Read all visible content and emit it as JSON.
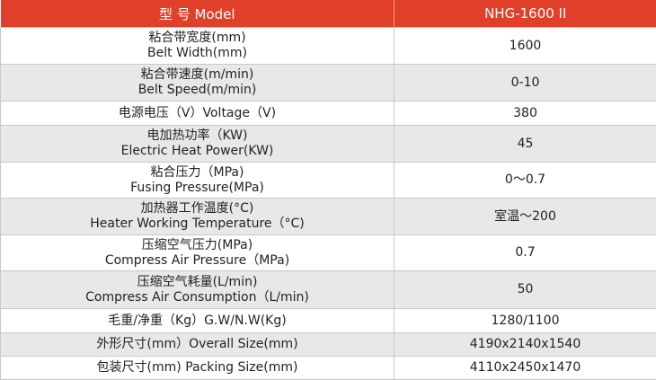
{
  "header": {
    "model_label": "型 号 Model",
    "model_value": "NHG-1600 II"
  },
  "rows": [
    {
      "label_cn": "粘合带宽度(mm)",
      "label_en": "Belt Width(mm)",
      "value": "1600"
    },
    {
      "label_cn": "粘合带速度(m/min)",
      "label_en": "Belt Speed(m/min)",
      "value": "0-10"
    },
    {
      "label_cn": "电源电压（V）Voltage（V)",
      "label_en": "",
      "value": "380"
    },
    {
      "label_cn": "电加热功率（KW)",
      "label_en": "Electric Heat Power(KW)",
      "value": "45"
    },
    {
      "label_cn": "粘合压力（MPa)",
      "label_en": "Fusing Pressure(MPa)",
      "value": "0～0.7"
    },
    {
      "label_cn": "加热器工作温度(°C)",
      "label_en": "Heater Working Temperature（°C)",
      "value": "室温～200"
    },
    {
      "label_cn": "压缩空气压力(MPa)",
      "label_en": "Compress Air Pressure（MPa)",
      "value": "0.7"
    },
    {
      "label_cn": "压缩空气耗量(L/min)",
      "label_en": "Compress Air Consumption（L/min)",
      "value": "50"
    },
    {
      "label_cn": "毛重/净重（Kg）G.W/N.W(Kg)",
      "label_en": "",
      "value": "1280/1100"
    },
    {
      "label_cn": "外形尺寸(mm）Overall Size(mm)",
      "label_en": "",
      "value": "4190x2140x1540"
    },
    {
      "label_cn": "包装尺寸(mm) Packing Size(mm)",
      "label_en": "",
      "value": "4110x2450x1470"
    }
  ],
  "colors": {
    "header_bg": "#e0402a",
    "shade_row": "#e8e8e8",
    "border": "#c8c8c8"
  }
}
